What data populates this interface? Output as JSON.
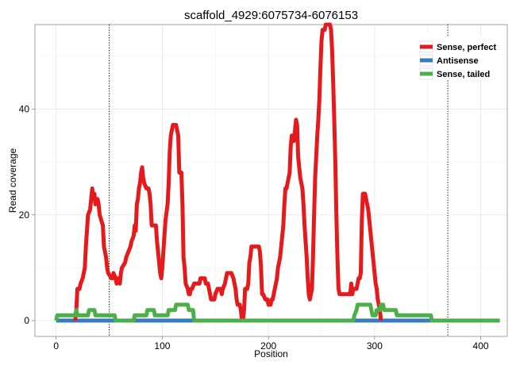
{
  "chart_data": {
    "type": "line",
    "title": "scaffold_4929:6075734-6076153",
    "xlabel": "Position",
    "ylabel": "Read coverage",
    "xlim": [
      -20,
      425
    ],
    "ylim": [
      -3,
      56
    ],
    "x_ticks": [
      0,
      100,
      200,
      300,
      400
    ],
    "y_ticks": [
      0,
      20,
      40
    ],
    "grid": true,
    "legend_position": "top-right",
    "vlines": [
      50,
      369
    ],
    "series": [
      {
        "name": "Sense, perfect",
        "color": "#E41A1C",
        "points": [
          [
            18,
            0
          ],
          [
            19,
            2
          ],
          [
            20,
            6
          ],
          [
            22,
            6
          ],
          [
            23,
            7
          ],
          [
            25,
            8
          ],
          [
            26,
            9
          ],
          [
            27,
            10
          ],
          [
            28,
            14
          ],
          [
            29,
            17
          ],
          [
            30,
            20
          ],
          [
            32,
            21
          ],
          [
            33,
            23
          ],
          [
            34,
            25
          ],
          [
            35,
            23
          ],
          [
            36,
            24
          ],
          [
            37,
            22
          ],
          [
            39,
            23
          ],
          [
            40,
            22
          ],
          [
            41,
            20
          ],
          [
            44,
            18
          ],
          [
            45,
            14
          ],
          [
            46,
            13
          ],
          [
            47,
            12
          ],
          [
            48,
            10
          ],
          [
            49,
            9
          ],
          [
            52,
            8
          ],
          [
            53,
            8
          ],
          [
            54,
            9
          ],
          [
            56,
            8
          ],
          [
            57,
            7
          ],
          [
            58,
            8
          ],
          [
            60,
            7
          ],
          [
            61,
            9
          ],
          [
            62,
            10
          ],
          [
            65,
            11
          ],
          [
            66,
            12
          ],
          [
            68,
            13
          ],
          [
            70,
            14
          ],
          [
            71,
            15
          ],
          [
            73,
            16
          ],
          [
            74,
            18
          ],
          [
            75,
            17
          ],
          [
            76,
            22
          ],
          [
            77,
            23
          ],
          [
            78,
            25
          ],
          [
            79,
            26
          ],
          [
            80,
            28
          ],
          [
            81,
            29
          ],
          [
            82,
            27
          ],
          [
            83,
            26
          ],
          [
            85,
            25
          ],
          [
            87,
            25
          ],
          [
            88,
            24
          ],
          [
            89,
            22
          ],
          [
            90,
            18
          ],
          [
            94,
            18
          ],
          [
            95,
            15
          ],
          [
            96,
            13
          ],
          [
            97,
            11
          ],
          [
            98,
            9
          ],
          [
            99,
            8
          ],
          [
            100,
            10
          ],
          [
            101,
            13
          ],
          [
            102,
            16
          ],
          [
            103,
            19
          ],
          [
            105,
            22
          ],
          [
            106,
            26
          ],
          [
            107,
            32
          ],
          [
            108,
            35
          ],
          [
            109,
            36
          ],
          [
            110,
            37
          ],
          [
            113,
            37
          ],
          [
            114,
            36
          ],
          [
            115,
            35
          ],
          [
            116,
            28
          ],
          [
            118,
            28
          ],
          [
            119,
            22
          ],
          [
            120,
            12
          ],
          [
            121,
            10
          ],
          [
            122,
            7
          ],
          [
            124,
            6
          ],
          [
            125,
            5
          ],
          [
            126,
            5
          ],
          [
            127,
            6
          ],
          [
            128,
            6
          ],
          [
            130,
            7
          ],
          [
            135,
            7
          ],
          [
            136,
            8
          ],
          [
            140,
            8
          ],
          [
            141,
            7
          ],
          [
            143,
            7
          ],
          [
            144,
            6
          ],
          [
            145,
            5
          ],
          [
            146,
            4
          ],
          [
            149,
            4
          ],
          [
            150,
            5
          ],
          [
            152,
            6
          ],
          [
            155,
            6
          ],
          [
            156,
            5
          ],
          [
            157,
            6
          ],
          [
            159,
            7
          ],
          [
            160,
            8
          ],
          [
            161,
            9
          ],
          [
            164,
            9
          ],
          [
            165,
            9
          ],
          [
            167,
            8
          ],
          [
            169,
            6
          ],
          [
            170,
            4
          ],
          [
            171,
            3
          ],
          [
            173,
            3
          ],
          [
            174,
            2
          ],
          [
            175,
            0
          ],
          [
            176,
            0
          ],
          [
            177,
            2
          ],
          [
            178,
            6
          ],
          [
            180,
            6
          ],
          [
            181,
            7
          ],
          [
            182,
            11
          ],
          [
            183,
            12
          ],
          [
            184,
            14
          ],
          [
            191,
            14
          ],
          [
            192,
            13
          ],
          [
            193,
            10
          ],
          [
            194,
            5
          ],
          [
            195,
            5
          ],
          [
            197,
            4
          ],
          [
            199,
            4
          ],
          [
            200,
            3
          ],
          [
            202,
            3
          ],
          [
            203,
            4
          ],
          [
            204,
            4
          ],
          [
            205,
            5
          ],
          [
            206,
            6
          ],
          [
            207,
            7
          ],
          [
            208,
            8
          ],
          [
            209,
            10
          ],
          [
            210,
            11
          ],
          [
            211,
            12
          ],
          [
            212,
            14
          ],
          [
            213,
            16
          ],
          [
            214,
            18
          ],
          [
            215,
            22
          ],
          [
            216,
            25
          ],
          [
            217,
            25
          ],
          [
            218,
            26
          ],
          [
            219,
            27
          ],
          [
            220,
            28
          ],
          [
            221,
            33
          ],
          [
            222,
            35
          ],
          [
            223,
            35
          ],
          [
            224,
            34
          ],
          [
            225,
            36
          ],
          [
            226,
            38
          ],
          [
            227,
            37
          ],
          [
            228,
            31
          ],
          [
            229,
            29
          ],
          [
            230,
            27
          ],
          [
            231,
            26
          ],
          [
            232,
            25
          ],
          [
            233,
            22
          ],
          [
            234,
            18
          ],
          [
            235,
            15
          ],
          [
            236,
            12
          ],
          [
            237,
            8
          ],
          [
            238,
            5
          ],
          [
            239,
            4
          ],
          [
            240,
            5
          ],
          [
            241,
            6
          ],
          [
            242,
            12
          ],
          [
            243,
            20
          ],
          [
            244,
            27
          ],
          [
            245,
            31
          ],
          [
            246,
            35
          ],
          [
            247,
            38
          ],
          [
            248,
            42
          ],
          [
            249,
            48
          ],
          [
            250,
            53
          ],
          [
            251,
            55
          ],
          [
            253,
            55
          ],
          [
            254,
            56
          ],
          [
            258,
            56
          ],
          [
            259,
            55
          ],
          [
            260,
            51
          ],
          [
            261,
            45
          ],
          [
            262,
            38
          ],
          [
            263,
            30
          ],
          [
            264,
            20
          ],
          [
            265,
            12
          ],
          [
            266,
            6
          ],
          [
            267,
            5
          ],
          [
            270,
            5
          ],
          [
            271,
            5
          ],
          [
            275,
            5
          ],
          [
            277,
            5
          ],
          [
            278,
            7
          ],
          [
            279,
            5
          ],
          [
            280,
            6
          ],
          [
            283,
            6
          ],
          [
            284,
            7
          ],
          [
            285,
            8
          ],
          [
            286,
            8
          ],
          [
            287,
            9
          ],
          [
            288,
            19
          ],
          [
            289,
            24
          ],
          [
            290,
            24
          ],
          [
            291,
            24
          ],
          [
            292,
            23
          ],
          [
            293,
            22
          ],
          [
            294,
            21
          ],
          [
            295,
            19
          ],
          [
            296,
            17
          ],
          [
            297,
            15
          ],
          [
            298,
            13
          ],
          [
            299,
            11
          ],
          [
            300,
            9
          ],
          [
            301,
            7
          ],
          [
            302,
            6
          ],
          [
            303,
            4
          ],
          [
            304,
            3
          ],
          [
            305,
            2
          ],
          [
            306,
            0
          ]
        ]
      },
      {
        "name": "Antisense",
        "color": "#377EB8",
        "points": [
          [
            0,
            0
          ],
          [
            360,
            0
          ]
        ]
      },
      {
        "name": "Sense, tailed",
        "color": "#4DAF4A",
        "points": [
          [
            0,
            0
          ],
          [
            1,
            1
          ],
          [
            18,
            1
          ],
          [
            19,
            2
          ],
          [
            20,
            1
          ],
          [
            24,
            1
          ],
          [
            25,
            1
          ],
          [
            30,
            1
          ],
          [
            31,
            2
          ],
          [
            36,
            2
          ],
          [
            37,
            1
          ],
          [
            46,
            1
          ],
          [
            47,
            1
          ],
          [
            55,
            1
          ],
          [
            56,
            0
          ],
          [
            73,
            0
          ],
          [
            74,
            1
          ],
          [
            85,
            1
          ],
          [
            86,
            2
          ],
          [
            92,
            2
          ],
          [
            93,
            1
          ],
          [
            105,
            1
          ],
          [
            106,
            2
          ],
          [
            112,
            2
          ],
          [
            113,
            3
          ],
          [
            124,
            3
          ],
          [
            125,
            2
          ],
          [
            129,
            2
          ],
          [
            130,
            0
          ],
          [
            280,
            0
          ],
          [
            281,
            1
          ],
          [
            283,
            2
          ],
          [
            284,
            3
          ],
          [
            296,
            3
          ],
          [
            297,
            2
          ],
          [
            298,
            1
          ],
          [
            301,
            1
          ],
          [
            302,
            2
          ],
          [
            305,
            2
          ],
          [
            306,
            3
          ],
          [
            308,
            3
          ],
          [
            309,
            2
          ],
          [
            320,
            2
          ],
          [
            321,
            1
          ],
          [
            353,
            1
          ],
          [
            354,
            0
          ],
          [
            418,
            0
          ]
        ]
      }
    ]
  }
}
